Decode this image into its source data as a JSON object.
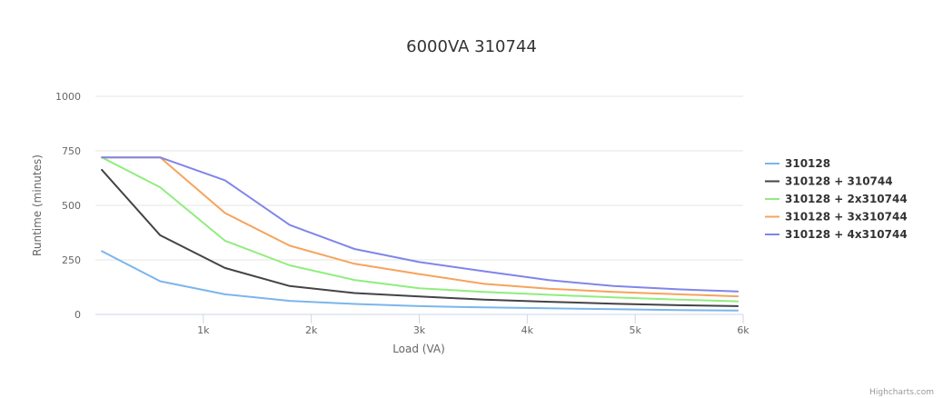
{
  "chart_data": {
    "type": "line",
    "title": "6000VA 310744",
    "xlabel": "Load (VA)",
    "ylabel": "Runtime (minutes)",
    "xlim": [
      0,
      6000
    ],
    "ylim": [
      0,
      1000
    ],
    "x_ticks": [
      1000,
      2000,
      3000,
      4000,
      5000,
      6000
    ],
    "x_tick_labels": [
      "1k",
      "2k",
      "3k",
      "4k",
      "5k",
      "6k"
    ],
    "y_ticks": [
      0,
      250,
      500,
      750,
      1000
    ],
    "y_tick_labels": [
      "0",
      "250",
      "500",
      "750",
      "1000"
    ],
    "grid": true,
    "legend_position": "right",
    "x": [
      60,
      600,
      1200,
      1800,
      2400,
      3000,
      3600,
      4200,
      4800,
      5400,
      5950
    ],
    "series": [
      {
        "name": "310128",
        "color": "#7cb5ec",
        "values": [
          290,
          152,
          92,
          62,
          48,
          38,
          32,
          28,
          24,
          20,
          18
        ]
      },
      {
        "name": "310128 + 310744",
        "color": "#434348",
        "values": [
          663,
          363,
          213,
          130,
          98,
          82,
          68,
          58,
          49,
          42,
          38
        ]
      },
      {
        "name": "310128 + 2x310744",
        "color": "#90ed7d",
        "values": [
          720,
          583,
          338,
          225,
          158,
          120,
          103,
          90,
          78,
          68,
          60
        ]
      },
      {
        "name": "310128 + 3x310744",
        "color": "#f7a35c",
        "values": [
          720,
          720,
          465,
          315,
          232,
          185,
          140,
          118,
          103,
          92,
          83
        ]
      },
      {
        "name": "310128 + 4x310744",
        "color": "#8085e9",
        "values": [
          720,
          720,
          615,
          410,
          300,
          240,
          198,
          157,
          130,
          115,
          105
        ]
      }
    ]
  },
  "credits": "Highcharts.com"
}
